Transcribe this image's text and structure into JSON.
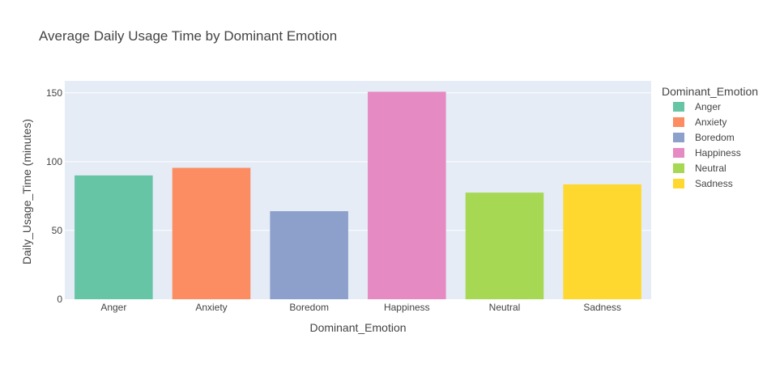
{
  "chart_data": {
    "type": "bar",
    "title": "Average Daily Usage Time by Dominant Emotion",
    "xlabel": "Dominant_Emotion",
    "ylabel": "Daily_Usage_Time (minutes)",
    "categories": [
      "Anger",
      "Anxiety",
      "Boredom",
      "Happiness",
      "Neutral",
      "Sadness"
    ],
    "values": [
      90,
      95.5,
      64,
      150.8,
      77.5,
      83.5
    ],
    "colors": [
      "#66c5a5",
      "#fc8c62",
      "#8da0cb",
      "#e68ac3",
      "#a6d854",
      "#ffd82f"
    ],
    "yticks": [
      0,
      50,
      100,
      150
    ],
    "ylim": [
      0,
      158.7
    ],
    "grid": true,
    "legend": {
      "title": "Dominant_Emotion",
      "placement": "right",
      "items": [
        "Anger",
        "Anxiety",
        "Boredom",
        "Happiness",
        "Neutral",
        "Sadness"
      ]
    },
    "plot_background": "#e5ecf6"
  }
}
